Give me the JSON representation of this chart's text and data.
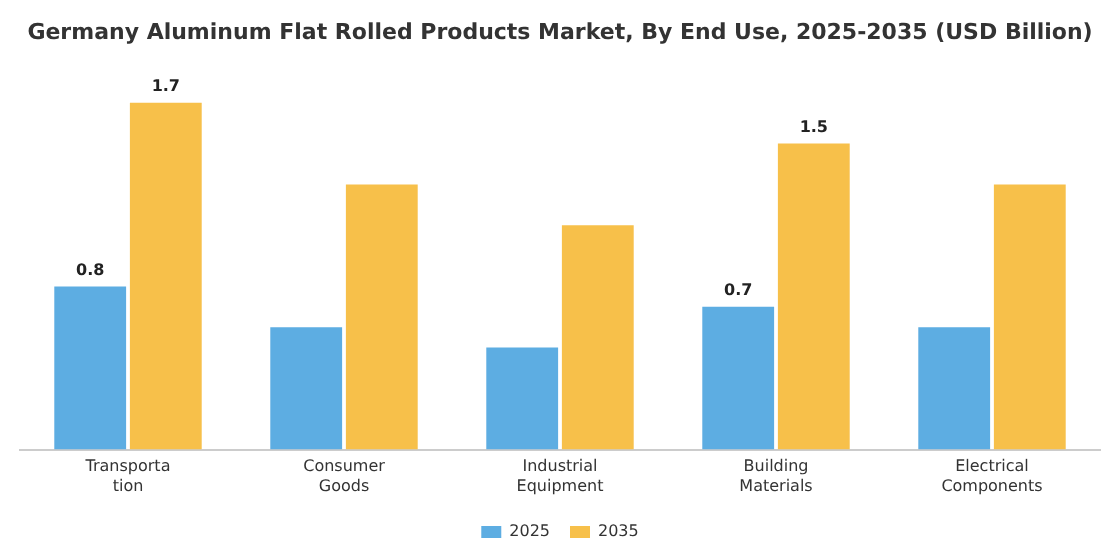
{
  "chart_data": {
    "type": "bar",
    "title": "Germany Aluminum Flat Rolled Products Market, By End Use, 2025-2035 (USD Billion)",
    "categories": [
      "Transporta\ntion",
      "Consumer\nGoods",
      "Industrial\nEquipment",
      "Building\nMaterials",
      "Electrical\nComponents"
    ],
    "series": [
      {
        "name": "2025",
        "color": "#5dade2",
        "values": [
          0.8,
          0.6,
          0.5,
          0.7,
          0.6
        ],
        "value_labels": [
          "0.8",
          null,
          null,
          "0.7",
          null
        ]
      },
      {
        "name": "2035",
        "color": "#f7c04a",
        "values": [
          1.7,
          1.3,
          1.1,
          1.5,
          1.3
        ],
        "value_labels": [
          "1.7",
          null,
          null,
          "1.5",
          null
        ]
      }
    ],
    "grid": false,
    "legend": "bottom"
  }
}
